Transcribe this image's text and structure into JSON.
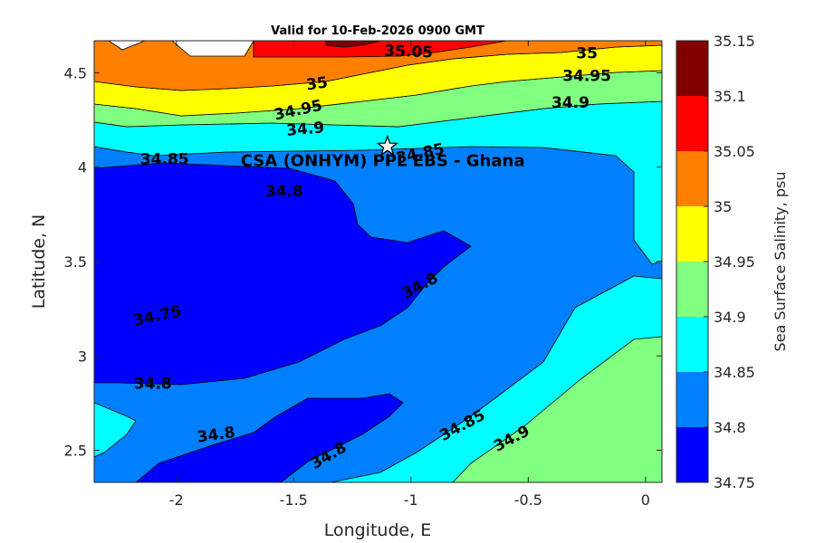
{
  "chart_data": {
    "type": "contour",
    "title": "Valid for 10-Feb-2026 0900 GMT",
    "xlabel": "Longitude, E",
    "ylabel": "Latitude, N",
    "xlim": [
      -2.35,
      0.07
    ],
    "ylim": [
      2.33,
      4.67
    ],
    "x_ticks": [
      -2,
      -1.5,
      -1,
      -0.5,
      0
    ],
    "x_tick_labels": [
      "-2",
      "-1.5",
      "-1",
      "-0.5",
      "0"
    ],
    "y_ticks": [
      2.5,
      3,
      3.5,
      4,
      4.5
    ],
    "y_tick_labels": [
      "2.5",
      "3",
      "3.5",
      "4",
      "4.5"
    ],
    "colorbar": {
      "label": "Sea Surface Salinity, psu",
      "levels": [
        34.75,
        34.8,
        34.85,
        34.9,
        34.95,
        35,
        35.05,
        35.1,
        35.15
      ],
      "level_labels": [
        "34.75",
        "34.8",
        "34.85",
        "34.9",
        "34.95",
        "35",
        "35.05",
        "35.1",
        "35.15"
      ],
      "colors": [
        "#0000ff",
        "#0080ff",
        "#00ffff",
        "#80ff80",
        "#ffff00",
        "#ff8000",
        "#ff0000",
        "#800000"
      ]
    },
    "contour_labels": [
      {
        "text": "35.05",
        "lon": -1.01,
        "lat": 4.61,
        "angle": 2
      },
      {
        "text": "35",
        "lon": -0.25,
        "lat": 4.6,
        "angle": 0
      },
      {
        "text": "35",
        "lon": -1.4,
        "lat": 4.44,
        "angle": -8
      },
      {
        "text": "34.95",
        "lon": -0.25,
        "lat": 4.48,
        "angle": 0
      },
      {
        "text": "34.95",
        "lon": -1.48,
        "lat": 4.3,
        "angle": -12
      },
      {
        "text": "34.9",
        "lon": -0.32,
        "lat": 4.34,
        "angle": 0
      },
      {
        "text": "34.9",
        "lon": -1.45,
        "lat": 4.2,
        "angle": -5
      },
      {
        "text": "34.85",
        "lon": -2.05,
        "lat": 4.04,
        "angle": 0
      },
      {
        "text": "34.85",
        "lon": -0.96,
        "lat": 4.07,
        "angle": -12
      },
      {
        "text": "34.8",
        "lon": -1.54,
        "lat": 3.87,
        "angle": 0
      },
      {
        "text": "34.8",
        "lon": -0.96,
        "lat": 3.37,
        "angle": -28
      },
      {
        "text": "34.75",
        "lon": -2.08,
        "lat": 3.21,
        "angle": -12
      },
      {
        "text": "34.8",
        "lon": -2.1,
        "lat": 2.85,
        "angle": 0
      },
      {
        "text": "34.8",
        "lon": -1.83,
        "lat": 2.58,
        "angle": -8
      },
      {
        "text": "34.8",
        "lon": -1.35,
        "lat": 2.47,
        "angle": -30
      },
      {
        "text": "34.85",
        "lon": -0.78,
        "lat": 2.63,
        "angle": -28
      },
      {
        "text": "34.9",
        "lon": -0.57,
        "lat": 2.56,
        "angle": -28
      }
    ],
    "annotations": [
      {
        "text": "CSA (ONHYM) PPL EBS - Ghana",
        "lon": -1.12,
        "lat": 4.03,
        "marker": "star",
        "marker_lon": -1.1,
        "marker_lat": 4.11
      }
    ]
  }
}
